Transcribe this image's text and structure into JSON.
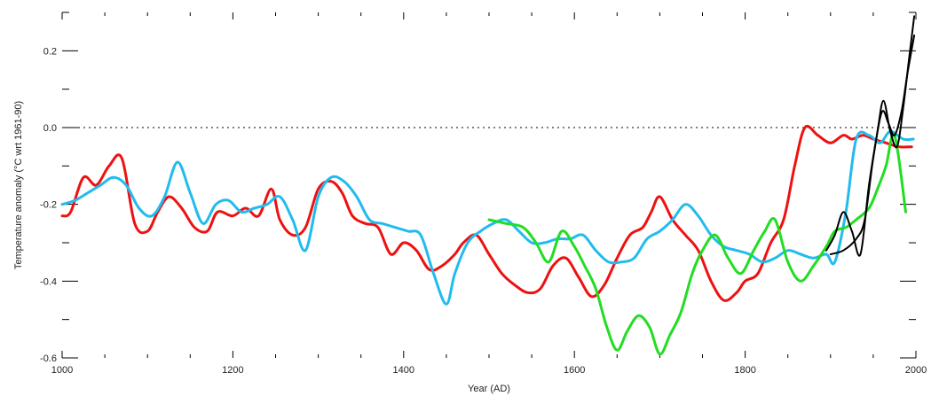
{
  "chart_data": {
    "type": "line",
    "title": "",
    "xlabel": "Year (AD)",
    "ylabel": "Temperature anomaly (°C wrt 1961-90)",
    "xlim": [
      1000,
      2000
    ],
    "ylim": [
      -0.6,
      0.3
    ],
    "x_ticks": [
      1000,
      1200,
      1400,
      1600,
      1800,
      2000
    ],
    "x_tick_labels": [
      "1000",
      "1200",
      "1400",
      "1600",
      "1800",
      "2000"
    ],
    "y_ticks": [
      -0.6,
      -0.4,
      -0.2,
      0.0,
      0.2
    ],
    "y_tick_labels": [
      "-0.6",
      "-0.4",
      "-0.2",
      "0.0",
      "0.2"
    ],
    "grid": false,
    "reference_line": 0.0,
    "colors": {
      "red": "#ee1111",
      "cyan": "#22bbee",
      "green": "#22dd22",
      "black": "#000000"
    },
    "series": [
      {
        "color": "#ee1111",
        "x": [
          1000,
          1010,
          1025,
          1040,
          1055,
          1070,
          1085,
          1100,
          1112,
          1125,
          1140,
          1155,
          1170,
          1182,
          1200,
          1215,
          1230,
          1245,
          1255,
          1270,
          1285,
          1300,
          1315,
          1328,
          1340,
          1355,
          1370,
          1385,
          1400,
          1415,
          1430,
          1445,
          1460,
          1470,
          1485,
          1500,
          1515,
          1530,
          1545,
          1560,
          1575,
          1590,
          1605,
          1620,
          1635,
          1650,
          1665,
          1680,
          1690,
          1700,
          1715,
          1730,
          1745,
          1760,
          1775,
          1790,
          1800,
          1815,
          1830,
          1845,
          1858,
          1870,
          1885,
          1900,
          1915,
          1925,
          1938,
          1950,
          1965,
          1980,
          1995
        ],
        "y": [
          -0.23,
          -0.22,
          -0.13,
          -0.15,
          -0.1,
          -0.08,
          -0.25,
          -0.27,
          -0.22,
          -0.18,
          -0.21,
          -0.26,
          -0.27,
          -0.22,
          -0.23,
          -0.21,
          -0.23,
          -0.16,
          -0.24,
          -0.28,
          -0.26,
          -0.16,
          -0.14,
          -0.17,
          -0.23,
          -0.25,
          -0.26,
          -0.33,
          -0.3,
          -0.32,
          -0.37,
          -0.36,
          -0.33,
          -0.3,
          -0.28,
          -0.33,
          -0.38,
          -0.41,
          -0.43,
          -0.42,
          -0.36,
          -0.34,
          -0.39,
          -0.44,
          -0.41,
          -0.34,
          -0.28,
          -0.26,
          -0.22,
          -0.18,
          -0.24,
          -0.28,
          -0.32,
          -0.4,
          -0.45,
          -0.43,
          -0.4,
          -0.38,
          -0.3,
          -0.24,
          -0.1,
          0.0,
          -0.02,
          -0.04,
          -0.02,
          -0.03,
          -0.02,
          -0.03,
          -0.04,
          -0.05,
          -0.05
        ]
      },
      {
        "color": "#22bbee",
        "x": [
          1000,
          1015,
          1030,
          1045,
          1060,
          1075,
          1090,
          1105,
          1120,
          1135,
          1150,
          1165,
          1180,
          1195,
          1210,
          1225,
          1240,
          1255,
          1270,
          1285,
          1300,
          1315,
          1330,
          1345,
          1360,
          1375,
          1390,
          1405,
          1420,
          1435,
          1450,
          1460,
          1475,
          1490,
          1505,
          1520,
          1535,
          1550,
          1565,
          1580,
          1595,
          1610,
          1625,
          1640,
          1655,
          1670,
          1685,
          1700,
          1715,
          1730,
          1745,
          1760,
          1775,
          1790,
          1805,
          1820,
          1835,
          1850,
          1865,
          1880,
          1895,
          1905,
          1918,
          1930,
          1945,
          1958,
          1970,
          1985,
          1997
        ],
        "y": [
          -0.2,
          -0.19,
          -0.17,
          -0.15,
          -0.13,
          -0.15,
          -0.21,
          -0.23,
          -0.18,
          -0.09,
          -0.17,
          -0.25,
          -0.2,
          -0.19,
          -0.22,
          -0.21,
          -0.2,
          -0.18,
          -0.24,
          -0.32,
          -0.18,
          -0.13,
          -0.14,
          -0.18,
          -0.24,
          -0.25,
          -0.26,
          -0.27,
          -0.28,
          -0.38,
          -0.46,
          -0.38,
          -0.3,
          -0.27,
          -0.25,
          -0.24,
          -0.27,
          -0.3,
          -0.3,
          -0.29,
          -0.29,
          -0.28,
          -0.32,
          -0.35,
          -0.35,
          -0.34,
          -0.29,
          -0.27,
          -0.24,
          -0.2,
          -0.23,
          -0.28,
          -0.31,
          -0.32,
          -0.33,
          -0.35,
          -0.34,
          -0.32,
          -0.33,
          -0.34,
          -0.33,
          -0.35,
          -0.22,
          -0.03,
          -0.02,
          -0.04,
          -0.01,
          -0.03,
          -0.03
        ]
      },
      {
        "color": "#22dd22",
        "x": [
          1500,
          1520,
          1540,
          1555,
          1570,
          1585,
          1600,
          1612,
          1625,
          1638,
          1650,
          1662,
          1675,
          1688,
          1700,
          1712,
          1725,
          1738,
          1750,
          1765,
          1780,
          1795,
          1810,
          1823,
          1835,
          1850,
          1865,
          1880,
          1895,
          1905,
          1918,
          1930,
          1945,
          1955,
          1965,
          1975,
          1988
        ],
        "y": [
          -0.24,
          -0.25,
          -0.26,
          -0.3,
          -0.35,
          -0.27,
          -0.31,
          -0.36,
          -0.42,
          -0.52,
          -0.58,
          -0.53,
          -0.49,
          -0.52,
          -0.59,
          -0.54,
          -0.48,
          -0.38,
          -0.32,
          -0.28,
          -0.34,
          -0.38,
          -0.32,
          -0.27,
          -0.24,
          -0.35,
          -0.4,
          -0.36,
          -0.31,
          -0.27,
          -0.26,
          -0.24,
          -0.21,
          -0.16,
          -0.1,
          -0.02,
          -0.22
        ]
      },
      {
        "color": "#000000",
        "x": [
          1895,
          1905,
          1915,
          1925,
          1935,
          1945,
          1955,
          1962,
          1970,
          1978,
          1985,
          1992,
          1998
        ],
        "y": [
          -0.32,
          -0.28,
          -0.22,
          -0.27,
          -0.33,
          -0.15,
          -0.01,
          0.07,
          -0.01,
          -0.05,
          0.05,
          0.18,
          0.29
        ]
      },
      {
        "color": "#000000",
        "x": [
          1900,
          1915,
          1930,
          1940,
          1950,
          1960,
          1968,
          1975,
          1983,
          1990,
          1998
        ],
        "y": [
          -0.33,
          -0.32,
          -0.29,
          -0.24,
          -0.08,
          0.04,
          0.01,
          -0.02,
          0.04,
          0.14,
          0.24
        ]
      }
    ]
  }
}
